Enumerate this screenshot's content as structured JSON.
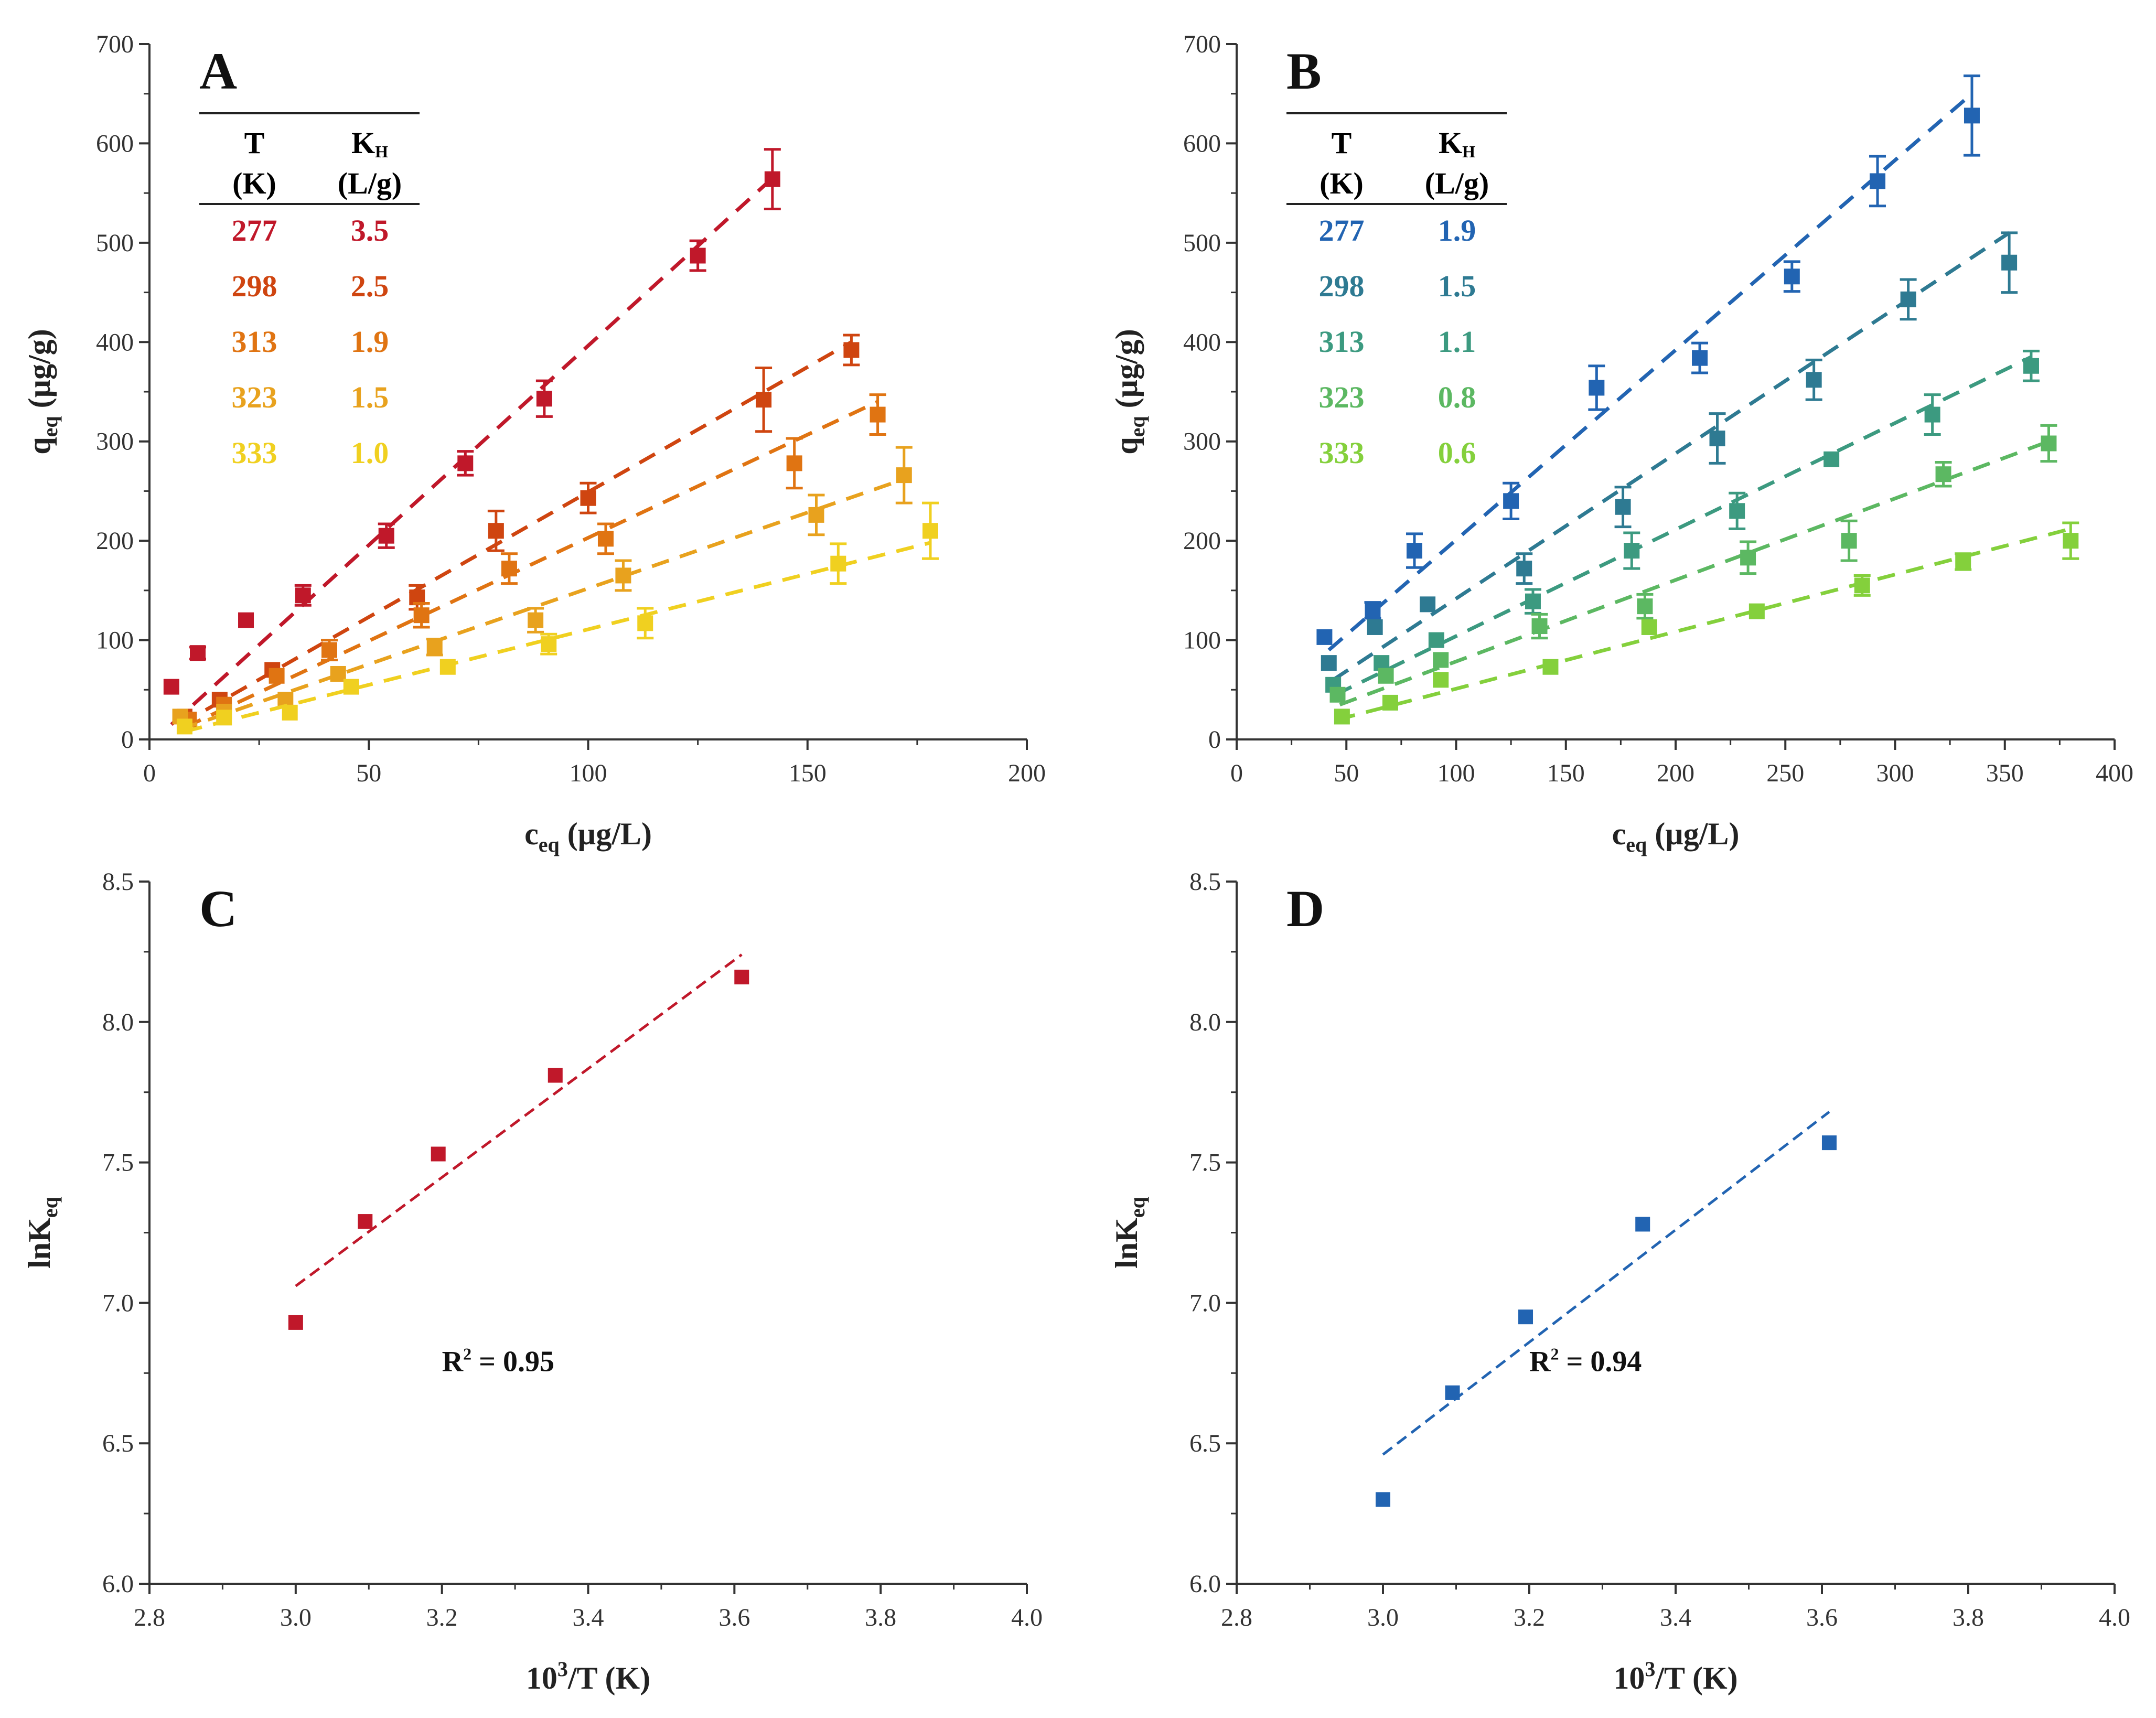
{
  "chart_data": [
    {
      "type": "scatter",
      "panel": "A",
      "xlabel": "c",
      "xlabel_sub": "eq",
      "xlabel_unit": " (µg/L)",
      "ylabel": "q",
      "ylabel_sub": "eq",
      "ylabel_unit": " (µg/g)",
      "xlim": [
        0,
        200
      ],
      "ylim": [
        0,
        700
      ],
      "xticks": [
        0,
        50,
        100,
        150,
        200
      ],
      "yticks": [
        0,
        100,
        200,
        300,
        400,
        500,
        600,
        700
      ],
      "table": {
        "header_t": "T",
        "header_t_unit": "(K)",
        "header_k": "K",
        "header_k_sub": "H",
        "header_k_unit": "(L/g)"
      },
      "series": [
        {
          "T": "277",
          "KH": "3.5",
          "color": "#c0182a",
          "fit": [
            [
              5,
              15
            ],
            [
              142,
              565
            ]
          ],
          "points": [
            [
              5,
              53,
              0
            ],
            [
              11,
              87,
              6
            ],
            [
              22,
              120,
              0
            ],
            [
              35,
              145,
              10
            ],
            [
              54,
              205,
              12
            ],
            [
              72,
              278,
              12
            ],
            [
              90,
              343,
              18
            ],
            [
              125,
              487,
              15
            ],
            [
              142,
              564,
              30
            ]
          ]
        },
        {
          "T": "298",
          "KH": "2.5",
          "color": "#cf4510",
          "fit": [
            [
              7,
              15
            ],
            [
              160,
              400
            ]
          ],
          "points": [
            [
              8,
              23,
              0
            ],
            [
              16,
              40,
              0
            ],
            [
              28,
              70,
              0
            ],
            [
              61,
              143,
              12
            ],
            [
              79,
              210,
              20
            ],
            [
              100,
              243,
              15
            ],
            [
              140,
              342,
              32
            ],
            [
              160,
              392,
              15
            ]
          ]
        },
        {
          "T": "313",
          "KH": "1.9",
          "color": "#e07412",
          "fit": [
            [
              8,
              12
            ],
            [
              166,
              340
            ]
          ],
          "points": [
            [
              9,
              20,
              0
            ],
            [
              17,
              35,
              0
            ],
            [
              29,
              64,
              0
            ],
            [
              41,
              90,
              10
            ],
            [
              62,
              125,
              12
            ],
            [
              82,
              172,
              15
            ],
            [
              104,
              202,
              15
            ],
            [
              147,
              278,
              25
            ],
            [
              166,
              327,
              20
            ]
          ]
        },
        {
          "T": "323",
          "KH": "1.5",
          "color": "#e8a21e",
          "fit": [
            [
              7,
              10
            ],
            [
              172,
              262
            ]
          ],
          "points": [
            [
              7,
              23,
              0
            ],
            [
              17,
              28,
              0
            ],
            [
              31,
              40,
              0
            ],
            [
              43,
              66,
              0
            ],
            [
              65,
              93,
              8
            ],
            [
              88,
              120,
              12
            ],
            [
              108,
              165,
              15
            ],
            [
              152,
              226,
              20
            ],
            [
              172,
              266,
              28
            ]
          ]
        },
        {
          "T": "333",
          "KH": "1.0",
          "color": "#f0d020",
          "fit": [
            [
              8,
              8
            ],
            [
              178,
              198
            ]
          ],
          "points": [
            [
              8,
              13,
              0
            ],
            [
              17,
              22,
              0
            ],
            [
              32,
              27,
              0
            ],
            [
              46,
              53,
              0
            ],
            [
              68,
              73,
              0
            ],
            [
              91,
              96,
              10
            ],
            [
              113,
              117,
              15
            ],
            [
              157,
              177,
              20
            ],
            [
              178,
              210,
              28
            ]
          ]
        }
      ]
    },
    {
      "type": "scatter",
      "panel": "B",
      "xlabel": "c",
      "xlabel_sub": "eq",
      "xlabel_unit": " (µg/L)",
      "ylabel": "q",
      "ylabel_sub": "eq",
      "ylabel_unit": " (µg/g)",
      "xlim": [
        0,
        400
      ],
      "ylim": [
        0,
        700
      ],
      "xticks": [
        0,
        50,
        100,
        150,
        200,
        250,
        300,
        350,
        400
      ],
      "yticks": [
        0,
        100,
        200,
        300,
        400,
        500,
        600,
        700
      ],
      "table": {
        "header_t": "T",
        "header_t_unit": "(K)",
        "header_k": "K",
        "header_k_sub": "H",
        "header_k_unit": "(L/g)"
      },
      "series": [
        {
          "T": "277",
          "KH": "1.9",
          "color": "#2264b2",
          "fit": [
            [
              42,
              90
            ],
            [
              335,
              650
            ]
          ],
          "points": [
            [
              40,
              103,
              0
            ],
            [
              62,
              130,
              8
            ],
            [
              81,
              190,
              17
            ],
            [
              125,
              240,
              18
            ],
            [
              164,
              354,
              22
            ],
            [
              211,
              384,
              15
            ],
            [
              253,
              466,
              15
            ],
            [
              292,
              562,
              25
            ],
            [
              335,
              628,
              40
            ]
          ]
        },
        {
          "T": "298",
          "KH": "1.5",
          "color": "#2e7a92",
          "fit": [
            [
              44,
              60
            ],
            [
              352,
              510
            ]
          ],
          "points": [
            [
              42,
              77,
              0
            ],
            [
              63,
              113,
              0
            ],
            [
              87,
              136,
              0
            ],
            [
              131,
              172,
              15
            ],
            [
              176,
              234,
              20
            ],
            [
              219,
              303,
              25
            ],
            [
              263,
              362,
              20
            ],
            [
              306,
              443,
              20
            ],
            [
              352,
              480,
              30
            ]
          ]
        },
        {
          "T": "313",
          "KH": "1.1",
          "color": "#3c9a80",
          "fit": [
            [
              45,
              45
            ],
            [
              362,
              385
            ]
          ],
          "points": [
            [
              44,
              55,
              0
            ],
            [
              66,
              77,
              0
            ],
            [
              91,
              100,
              0
            ],
            [
              135,
              139,
              12
            ],
            [
              180,
              190,
              18
            ],
            [
              228,
              230,
              18
            ],
            [
              271,
              282,
              0
            ],
            [
              317,
              327,
              20
            ],
            [
              362,
              376,
              15
            ]
          ]
        },
        {
          "T": "323",
          "KH": "0.8",
          "color": "#5cb862",
          "fit": [
            [
              47,
              35
            ],
            [
              370,
              300
            ]
          ],
          "points": [
            [
              46,
              45,
              0
            ],
            [
              68,
              64,
              0
            ],
            [
              93,
              80,
              0
            ],
            [
              138,
              114,
              12
            ],
            [
              186,
              134,
              12
            ],
            [
              233,
              183,
              16
            ],
            [
              279,
              200,
              20
            ],
            [
              322,
              267,
              12
            ],
            [
              370,
              298,
              18
            ]
          ]
        },
        {
          "T": "333",
          "KH": "0.6",
          "color": "#84d03c",
          "fit": [
            [
              46,
              20
            ],
            [
              380,
              212
            ]
          ],
          "points": [
            [
              48,
              23,
              0
            ],
            [
              70,
              37,
              0
            ],
            [
              93,
              60,
              0
            ],
            [
              143,
              73,
              0
            ],
            [
              188,
              113,
              0
            ],
            [
              237,
              129,
              0
            ],
            [
              285,
              155,
              10
            ],
            [
              331,
              179,
              8
            ],
            [
              380,
              200,
              18
            ]
          ]
        }
      ]
    },
    {
      "type": "scatter",
      "panel": "C",
      "xlabel": "10",
      "xlabel_sup": "3",
      "xlabel_unit": "/T (K)",
      "ylabel": "lnK",
      "ylabel_sub": "eq",
      "ylabel_unit": "",
      "xlim": [
        2.8,
        4.0
      ],
      "ylim": [
        6.0,
        8.5
      ],
      "xticks": [
        "2.8",
        "3.0",
        "3.2",
        "3.4",
        "3.6",
        "3.8",
        "4.0"
      ],
      "yticks": [
        "6.0",
        "6.5",
        "7.0",
        "7.5",
        "8.0",
        "8.5"
      ],
      "annotation": {
        "text": "R",
        "sup": "2",
        "rest": " = 0.95"
      },
      "series": [
        {
          "color": "#c0182a",
          "fit": [
            [
              3.0,
              7.06
            ],
            [
              3.61,
              8.24
            ]
          ],
          "points": [
            [
              3.0,
              6.93,
              0
            ],
            [
              3.095,
              7.29,
              0
            ],
            [
              3.195,
              7.53,
              0
            ],
            [
              3.355,
              7.81,
              0
            ],
            [
              3.61,
              8.16,
              0
            ]
          ]
        }
      ]
    },
    {
      "type": "scatter",
      "panel": "D",
      "xlabel": "10",
      "xlabel_sup": "3",
      "xlabel_unit": "/T (K)",
      "ylabel": "lnK",
      "ylabel_sub": "eq",
      "ylabel_unit": "",
      "xlim": [
        2.8,
        4.0
      ],
      "ylim": [
        6.0,
        8.5
      ],
      "xticks": [
        "2.8",
        "3.0",
        "3.2",
        "3.4",
        "3.6",
        "3.8",
        "4.0"
      ],
      "yticks": [
        "6.0",
        "6.5",
        "7.0",
        "7.5",
        "8.0",
        "8.5"
      ],
      "annotation": {
        "text": "R",
        "sup": "2",
        "rest": " = 0.94"
      },
      "series": [
        {
          "color": "#2264b2",
          "fit": [
            [
              3.0,
              6.46
            ],
            [
              3.61,
              7.68
            ]
          ],
          "points": [
            [
              3.0,
              6.3,
              0
            ],
            [
              3.095,
              6.68,
              0
            ],
            [
              3.195,
              6.95,
              0
            ],
            [
              3.355,
              7.28,
              0
            ],
            [
              3.61,
              7.57,
              0
            ]
          ]
        }
      ]
    }
  ]
}
